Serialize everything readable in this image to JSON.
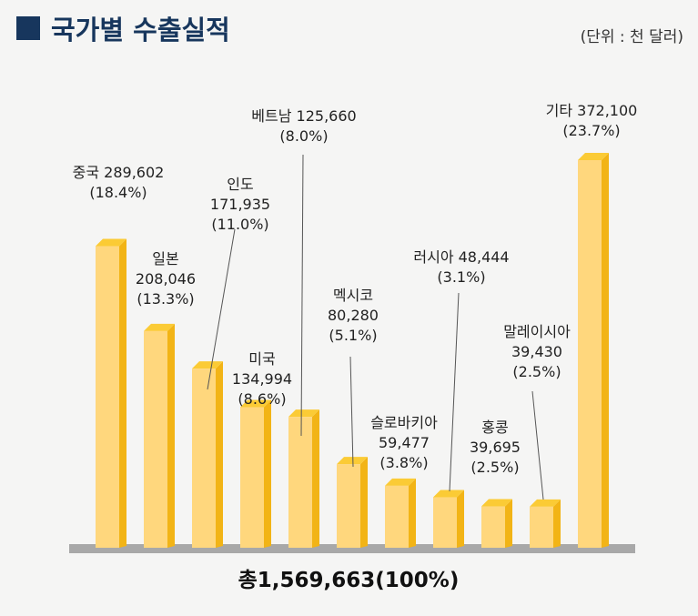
{
  "header": {
    "title": "국가별 수출실적",
    "unit": "(단위 : 천 달러)"
  },
  "colors": {
    "bar_front": "#ffd77d",
    "bar_side": "#f2b416",
    "bar_top": "#fbcb35",
    "baseline": "#a8a8a8",
    "title": "#17365d"
  },
  "chart_data": {
    "type": "bar",
    "title": "국가별 수출실적",
    "unit": "(단위 : 천 달러)",
    "categories": [
      "중국",
      "일본",
      "인도",
      "미국",
      "베트남",
      "멕시코",
      "슬로바키아",
      "러시아",
      "홍콩",
      "말레이시아",
      "기타"
    ],
    "values": [
      289602,
      208046,
      171935,
      134994,
      125660,
      80280,
      59477,
      48444,
      39695,
      39430,
      372100
    ],
    "value_labels": [
      "289,602",
      "208,046",
      "171,935",
      "134,994",
      "125,660",
      "80,280",
      "59,477",
      "48,444",
      "39,695",
      "39,430",
      "372,100"
    ],
    "percent_labels": [
      "(18.4%)",
      "(13.3%)",
      "(11.0%)",
      "(8.6%)",
      "(8.0%)",
      "(5.1%)",
      "(3.8%)",
      "(3.1%)",
      "(2.5%)",
      "(2.5%)",
      "(23.7%)"
    ],
    "total_label": "총1,569,663(100%)",
    "ylim": [
      0,
      372100
    ],
    "grid": false,
    "legend": "none"
  }
}
